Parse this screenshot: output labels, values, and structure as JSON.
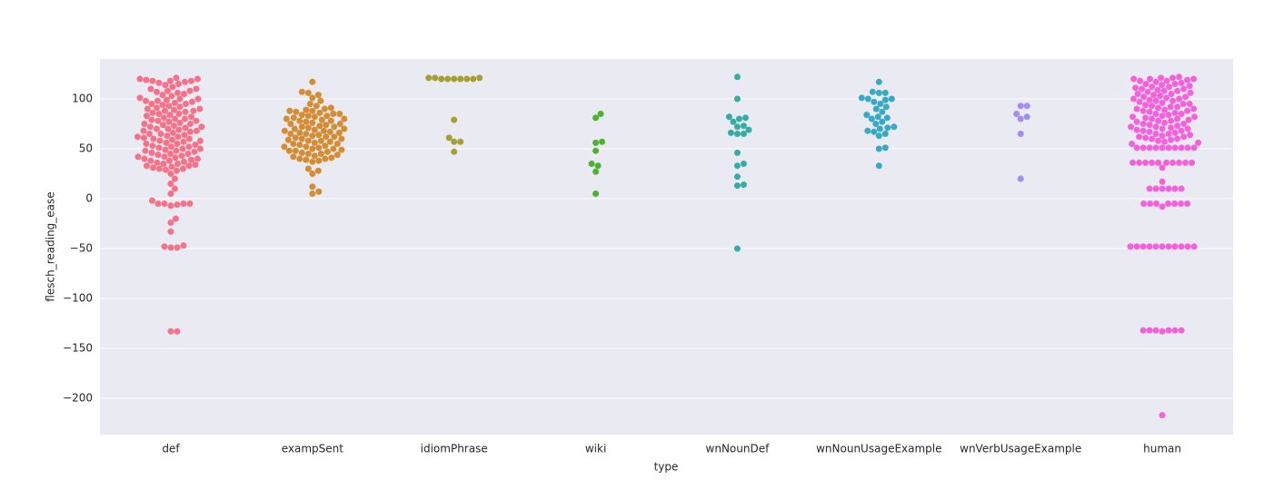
{
  "chart_data": {
    "type": "swarm",
    "x_label": "type",
    "y_label": "flesch_reading_ease",
    "categories": [
      "def",
      "exampSent",
      "idiomPhrase",
      "wiki",
      "wnNounDef",
      "wnNounUsageExample",
      "wnVerbUsageExample",
      "human"
    ],
    "colors": [
      "#f77189",
      "#d58c32",
      "#a4a031",
      "#50b131",
      "#36ada4",
      "#38a9c5",
      "#a48cf4",
      "#f561dd"
    ],
    "values": [
      [
        121,
        120,
        119,
        118,
        118,
        117,
        116,
        115,
        114,
        112,
        110,
        108,
        107,
        106,
        105,
        104,
        103,
        101,
        100,
        99,
        98,
        97,
        96,
        95,
        94,
        93,
        92,
        91,
        90,
        89,
        88,
        87,
        86,
        85,
        84,
        83,
        82,
        81,
        80,
        79,
        78,
        77,
        76,
        75,
        74,
        73,
        72,
        71,
        70,
        69,
        68,
        67,
        66,
        65,
        64,
        63,
        62,
        61,
        60,
        59,
        58,
        57,
        56,
        55,
        54,
        53,
        52,
        51,
        50,
        49,
        48,
        47,
        46,
        45,
        44,
        43,
        42,
        41,
        40,
        39,
        38,
        37,
        36,
        35,
        34,
        33,
        32,
        31,
        30,
        29,
        28,
        120,
        118,
        110,
        100,
        95,
        90,
        85,
        80,
        75,
        70,
        65,
        60,
        55,
        50,
        45,
        40,
        35,
        30,
        78,
        68,
        58,
        48,
        38,
        88,
        98,
        108,
        72,
        62,
        52,
        42,
        33,
        25,
        20,
        15,
        10,
        5,
        -2,
        -5,
        -5,
        -5,
        -5,
        -6,
        -7,
        -20,
        -24,
        -33,
        -47,
        -48,
        -49,
        -49,
        -133,
        -133
      ],
      [
        117,
        107,
        106,
        104,
        101,
        98,
        95,
        93,
        91,
        90,
        89,
        88,
        87,
        86,
        85,
        84,
        83,
        82,
        81,
        80,
        79,
        78,
        77,
        76,
        75,
        74,
        73,
        72,
        71,
        70,
        69,
        68,
        67,
        66,
        65,
        64,
        63,
        62,
        61,
        60,
        59,
        58,
        57,
        56,
        55,
        54,
        53,
        52,
        51,
        50,
        49,
        48,
        47,
        46,
        45,
        44,
        43,
        42,
        41,
        40,
        39,
        38,
        37,
        85,
        80,
        75,
        70,
        65,
        60,
        55,
        50,
        45,
        40,
        88,
        72,
        68,
        58,
        52,
        48,
        62,
        78,
        83,
        66,
        30,
        28,
        25,
        12,
        7,
        5
      ],
      [
        121,
        120,
        120,
        120,
        120,
        120,
        120,
        121,
        121,
        79,
        57,
        57,
        61,
        47
      ],
      [
        85,
        81,
        57,
        56,
        48,
        35,
        33,
        27,
        5
      ],
      [
        122,
        100,
        82,
        81,
        80,
        77,
        73,
        72,
        69,
        66,
        65,
        65,
        46,
        35,
        33,
        22,
        14,
        13,
        -50
      ],
      [
        117,
        107,
        106,
        106,
        101,
        100,
        100,
        99,
        97,
        95,
        92,
        90,
        87,
        84,
        82,
        81,
        80,
        77,
        75,
        72,
        71,
        70,
        68,
        67,
        65,
        63,
        51,
        50,
        33
      ],
      [
        93,
        93,
        85,
        82,
        80,
        65,
        20
      ],
      [
        122,
        121,
        121,
        120,
        120,
        119,
        118,
        117,
        116,
        115,
        114,
        113,
        112,
        111,
        110,
        109,
        108,
        107,
        106,
        105,
        104,
        103,
        102,
        101,
        100,
        99,
        98,
        97,
        96,
        95,
        94,
        93,
        92,
        91,
        90,
        89,
        88,
        87,
        86,
        85,
        84,
        83,
        82,
        81,
        80,
        79,
        78,
        77,
        76,
        75,
        74,
        73,
        72,
        71,
        70,
        69,
        68,
        67,
        66,
        65,
        64,
        63,
        62,
        61,
        60,
        59,
        58,
        57,
        56,
        55,
        120,
        115,
        110,
        105,
        100,
        95,
        90,
        85,
        80,
        75,
        70,
        65,
        60,
        118,
        108,
        98,
        88,
        78,
        68,
        62,
        112,
        102,
        92,
        82,
        72,
        51,
        51,
        51,
        51,
        51,
        51,
        51,
        51,
        51,
        51,
        36,
        36,
        36,
        36,
        36,
        36,
        36,
        36,
        36,
        36,
        31,
        17,
        10,
        10,
        10,
        10,
        10,
        10,
        -5,
        -5,
        -5,
        -5,
        -5,
        -5,
        -5,
        -8,
        -48,
        -48,
        -48,
        -48,
        -48,
        -48,
        -48,
        -48,
        -48,
        -48,
        -48,
        -132,
        -132,
        -132,
        -132,
        -132,
        -132,
        -133,
        -217
      ]
    ],
    "ylim": [
      -236.4,
      140
    ],
    "yticks": [
      {
        "value": -200,
        "label": "−200"
      },
      {
        "value": -150,
        "label": "−150"
      },
      {
        "value": -100,
        "label": "−100"
      },
      {
        "value": -50,
        "label": "−50"
      },
      0,
      50,
      100
    ],
    "grid": true
  }
}
